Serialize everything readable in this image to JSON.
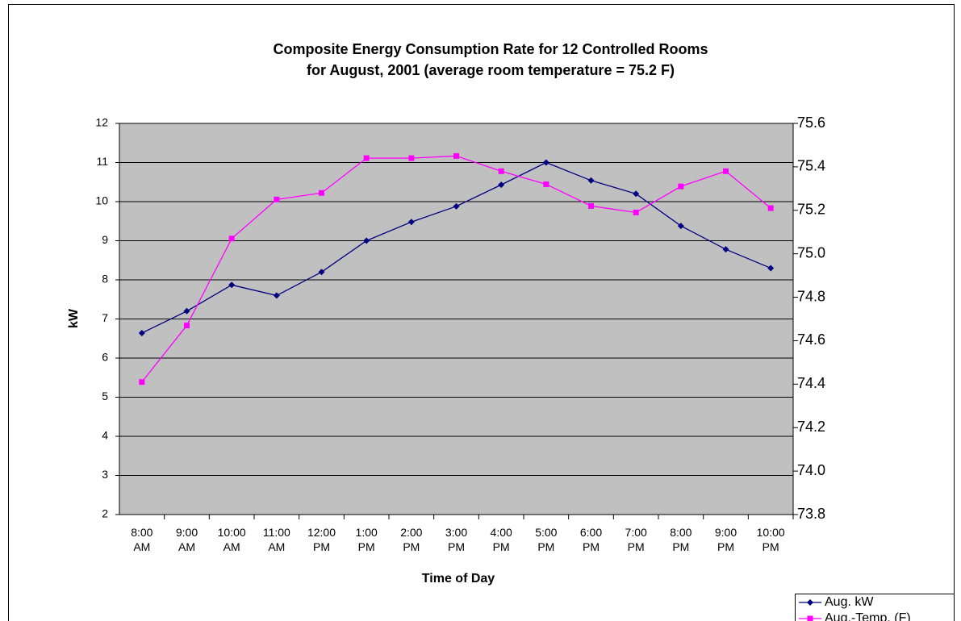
{
  "chart_data": {
    "type": "line",
    "title": [
      "Composite Energy Consumption Rate for 12 Controlled Rooms",
      "for August, 2001 (average room temperature = 75.2 F)"
    ],
    "x_label": "Time of Day",
    "y_label": "kW",
    "categories": [
      "8:00 AM",
      "9:00 AM",
      "10:00 AM",
      "11:00 AM",
      "12:00 PM",
      "1:00 PM",
      "2:00 PM",
      "3:00 PM",
      "4:00 PM",
      "5:00 PM",
      "6:00 PM",
      "7:00 PM",
      "8:00 PM",
      "9:00 PM",
      "10:00 PM"
    ],
    "series": [
      {
        "name": "Aug. kW",
        "color": "#000080",
        "marker": "diamond",
        "values": [
          6.64,
          7.2,
          7.87,
          7.6,
          8.2,
          9.0,
          9.48,
          9.88,
          10.43,
          11.0,
          10.54,
          10.2,
          9.38,
          8.78,
          8.3
        ]
      },
      {
        "name": "Aug.-Temp. (F)",
        "color": "#ff00ff",
        "marker": "square",
        "axis": "y2",
        "values": [
          74.41,
          74.67,
          75.07,
          75.25,
          75.28,
          75.44,
          75.44,
          75.45,
          75.38,
          75.32,
          75.22,
          75.19,
          75.31,
          75.38,
          75.21
        ]
      }
    ],
    "ylim": [
      2,
      12
    ],
    "yticks": [
      2,
      3,
      4,
      5,
      6,
      7,
      8,
      9,
      10,
      11,
      12
    ],
    "y2lim": [
      73.8,
      75.6
    ],
    "y2ticks": [
      73.8,
      74.2,
      {
        "value": 74.0,
        "label": "74.0"
      },
      74.4,
      74.6,
      74.8,
      {
        "value": 75.0,
        "label": "75.0"
      },
      75.2,
      75.4,
      75.6
    ],
    "grid": true,
    "plot_background": "#c0c0c0",
    "legend": "bottom-right"
  }
}
